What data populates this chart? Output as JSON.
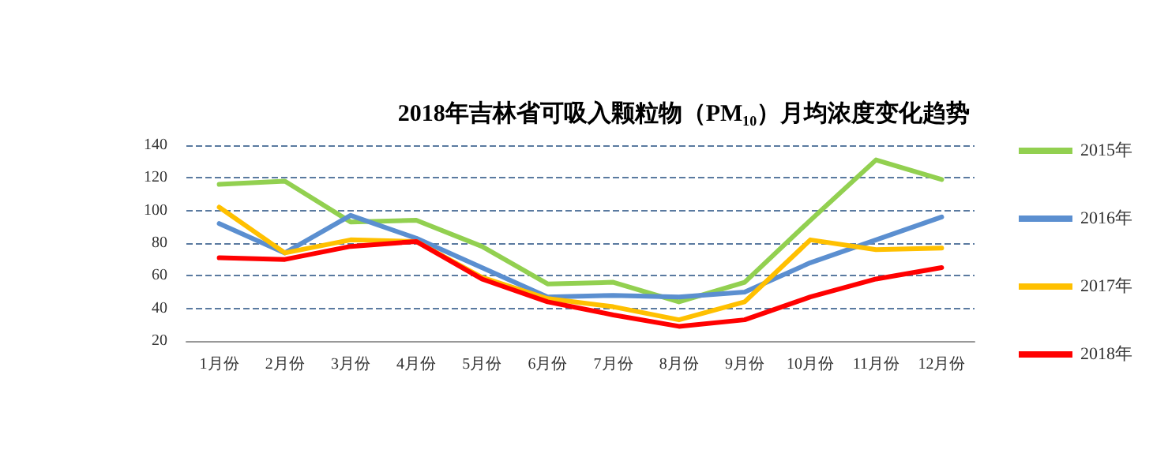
{
  "chart_data": {
    "type": "line",
    "title": "2018年吉林省可吸入颗粒物（PM₁₀）月均浓度变化趋势",
    "categories": [
      "1月份",
      "2月份",
      "3月份",
      "4月份",
      "5月份",
      "6月份",
      "7月份",
      "8月份",
      "9月份",
      "10月份",
      "11月份",
      "12月份"
    ],
    "series": [
      {
        "name": "2015年",
        "color": "#92d050",
        "values": [
          116,
          118,
          93,
          94,
          78,
          55,
          56,
          44,
          56,
          94,
          131,
          119
        ]
      },
      {
        "name": "2016年",
        "color": "#5b8fd0",
        "values": [
          92,
          74,
          97,
          83,
          65,
          47,
          48,
          47,
          50,
          68,
          82,
          96
        ]
      },
      {
        "name": "2017年",
        "color": "#ffc000",
        "values": [
          102,
          74,
          82,
          81,
          59,
          46,
          41,
          33,
          44,
          82,
          76,
          77
        ]
      },
      {
        "name": "2018年",
        "color": "#ff0000",
        "values": [
          71,
          70,
          78,
          81,
          58,
          44,
          36,
          29,
          33,
          47,
          58,
          65
        ]
      }
    ],
    "ylim": [
      20,
      140
    ],
    "yticks": [
      20,
      40,
      60,
      80,
      100,
      120,
      140
    ],
    "grid": "y",
    "legend": "right",
    "marker": "none",
    "line_style": "solid"
  }
}
